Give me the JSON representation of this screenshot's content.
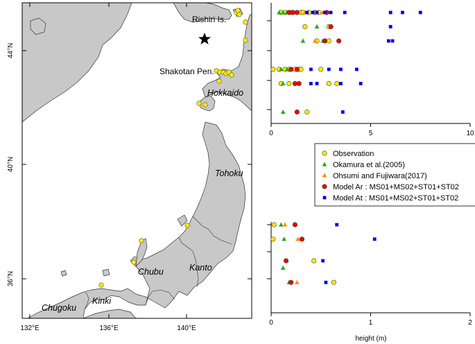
{
  "map": {
    "lat_labels": [
      "44°N",
      "40°N",
      "36°N"
    ],
    "lon_labels": [
      "132°E",
      "136°E",
      "140°E"
    ],
    "place_labels": {
      "rishiri": "Rishiri Is.",
      "shakotan": "Shakotan Pen."
    },
    "region_labels": [
      "Hokkaido",
      "Tohoku",
      "Chubu",
      "Kanto",
      "Kinki",
      "Chugoku"
    ],
    "epicenter_icon": "star-icon",
    "colors": {
      "sea": "#ffffff",
      "land": "#c8c8c8",
      "coast": "#333333",
      "obs": "#ffeb00"
    }
  },
  "legend": {
    "items": [
      {
        "label": "Observation",
        "marker": "circle",
        "color": "#ffeb00"
      },
      {
        "label": "Okamura et al.(2005)",
        "marker": "triangle",
        "color": "#22aa22"
      },
      {
        "label": "Ohsumi and Fujiwara(2017)",
        "marker": "triangle",
        "color": "#ff8c00"
      },
      {
        "label": "Model Ar : MS01+MS02+ST01+ST02",
        "marker": "circle",
        "color": "#ee0000"
      },
      {
        "label": "Model At : MS01+MS02+ST01+ST02",
        "marker": "square",
        "color": "#0000ee"
      }
    ]
  },
  "chart_data": [
    {
      "type": "scatter",
      "title": "",
      "xlabel": "",
      "ylabel": "",
      "xlim": [
        0,
        10
      ],
      "x_ticks": [
        "0",
        "5",
        "10"
      ],
      "series": [
        {
          "name": "Observation",
          "marker": "circle",
          "color": "#ffeb00",
          "points": [
            [
              0.5,
              1
            ],
            [
              0.7,
              1
            ],
            [
              1.0,
              1
            ],
            [
              1.3,
              1
            ],
            [
              1.5,
              1
            ],
            [
              1.6,
              1
            ],
            [
              1.9,
              1
            ],
            [
              2.2,
              1
            ],
            [
              2.4,
              1
            ],
            [
              1.7,
              2
            ],
            [
              2.9,
              2
            ],
            [
              2.3,
              3
            ],
            [
              2.9,
              3
            ],
            [
              0.1,
              5
            ],
            [
              0.4,
              5
            ],
            [
              0.7,
              5
            ],
            [
              0.9,
              5
            ],
            [
              1.2,
              5
            ],
            [
              1.4,
              5
            ],
            [
              1.5,
              5
            ],
            [
              2.5,
              5
            ],
            [
              0.5,
              6
            ],
            [
              0.9,
              6
            ],
            [
              2.9,
              6
            ],
            [
              3.3,
              6
            ],
            [
              1.8,
              8
            ]
          ]
        },
        {
          "name": "Okamura et al.(2005)",
          "marker": "triangle",
          "color": "#22aa22",
          "points": [
            [
              0.4,
              1
            ],
            [
              0.6,
              1
            ],
            [
              0.8,
              1
            ],
            [
              1.3,
              1
            ],
            [
              2.3,
              2
            ],
            [
              1.6,
              3
            ],
            [
              2.6,
              3
            ],
            [
              0.5,
              5
            ],
            [
              0.8,
              5
            ],
            [
              0.6,
              6
            ],
            [
              0.6,
              8
            ]
          ]
        },
        {
          "name": "Ohsumi and Fujiwara(2017)",
          "marker": "triangle",
          "color": "#ff8c00",
          "points": [
            [
              1.0,
              1
            ],
            [
              1.7,
              1
            ],
            [
              2.6,
              1
            ],
            [
              2.2,
              3
            ]
          ]
        },
        {
          "name": "Model Ar : MS01+MS02+ST01+ST02",
          "marker": "circle",
          "color": "#ee0000",
          "points": [
            [
              0.9,
              1
            ],
            [
              1.1,
              1
            ],
            [
              1.3,
              1
            ],
            [
              2.8,
              1
            ],
            [
              3.0,
              2
            ],
            [
              2.7,
              3
            ],
            [
              3.4,
              3
            ],
            [
              1.0,
              5
            ],
            [
              1.3,
              5
            ],
            [
              1.2,
              6
            ],
            [
              1.4,
              6
            ],
            [
              1.3,
              8
            ]
          ]
        },
        {
          "name": "Model At : MS01+MS02+ST01+ST02",
          "marker": "square",
          "color": "#0000ee",
          "points": [
            [
              1.8,
              1
            ],
            [
              2.1,
              1
            ],
            [
              2.3,
              1
            ],
            [
              2.7,
              1
            ],
            [
              3.0,
              1
            ],
            [
              3.7,
              1
            ],
            [
              6.0,
              1
            ],
            [
              6.6,
              1
            ],
            [
              7.5,
              1
            ],
            [
              6.0,
              2
            ],
            [
              5.9,
              3
            ],
            [
              6.1,
              3
            ],
            [
              2.0,
              5
            ],
            [
              2.9,
              5
            ],
            [
              3.5,
              5
            ],
            [
              4.3,
              5
            ],
            [
              2.0,
              6
            ],
            [
              2.3,
              6
            ],
            [
              3.5,
              6
            ],
            [
              4.5,
              6
            ],
            [
              3.6,
              8
            ]
          ]
        }
      ]
    },
    {
      "type": "scatter",
      "title": "",
      "xlabel": "height (m)",
      "ylabel": "",
      "xlim": [
        0,
        2
      ],
      "x_ticks": [
        "0",
        "1",
        "2"
      ],
      "series": [
        {
          "name": "Observation",
          "marker": "circle",
          "color": "#ffeb00",
          "points": [
            [
              0.03,
              1
            ],
            [
              0.02,
              3
            ],
            [
              0.43,
              6
            ],
            [
              0.63,
              9
            ]
          ]
        },
        {
          "name": "Okamura et al.(2005)",
          "marker": "triangle",
          "color": "#22aa22",
          "points": [
            [
              0.1,
              1
            ],
            [
              0.13,
              3
            ],
            [
              0.12,
              7
            ],
            [
              0.18,
              9
            ]
          ]
        },
        {
          "name": "Ohsumi and Fujiwara(2017)",
          "marker": "triangle",
          "color": "#ff8c00",
          "points": [
            [
              0.14,
              1
            ],
            [
              0.27,
              3
            ],
            [
              0.26,
              9
            ]
          ]
        },
        {
          "name": "Model Ar : MS01+MS02+ST01+ST02",
          "marker": "circle",
          "color": "#ee0000",
          "points": [
            [
              0.24,
              1
            ],
            [
              0.31,
              3
            ],
            [
              0.15,
              6
            ],
            [
              0.2,
              9
            ]
          ]
        },
        {
          "name": "Model At : MS01+MS02+ST01+ST02",
          "marker": "square",
          "color": "#0000ee",
          "points": [
            [
              0.66,
              1
            ],
            [
              1.04,
              3
            ],
            [
              0.52,
              6
            ],
            [
              0.55,
              9
            ]
          ]
        }
      ]
    }
  ]
}
